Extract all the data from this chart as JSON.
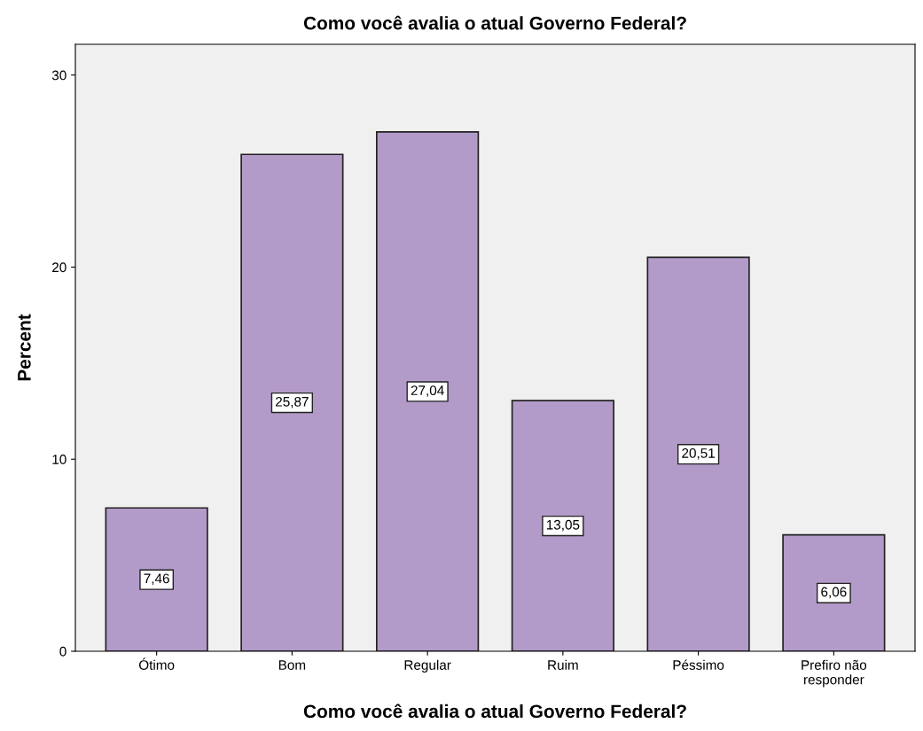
{
  "chart_data": {
    "type": "bar",
    "title": "Como você avalia o atual Governo Federal?",
    "xlabel": "Como você avalia o atual Governo Federal?",
    "ylabel": "Percent",
    "categories": [
      "Ótimo",
      "Bom",
      "Regular",
      "Ruim",
      "Péssimo",
      "Prefiro não\nresponder"
    ],
    "values": [
      7.46,
      25.87,
      27.04,
      13.05,
      20.51,
      6.06
    ],
    "value_labels": [
      "7,46",
      "25,87",
      "27,04",
      "13,05",
      "20,51",
      "6,06"
    ],
    "color": "#b39bc9",
    "ylim": [
      0,
      31.6
    ],
    "yticks": [
      0,
      10,
      20,
      30
    ],
    "grid": false,
    "legend": false
  }
}
